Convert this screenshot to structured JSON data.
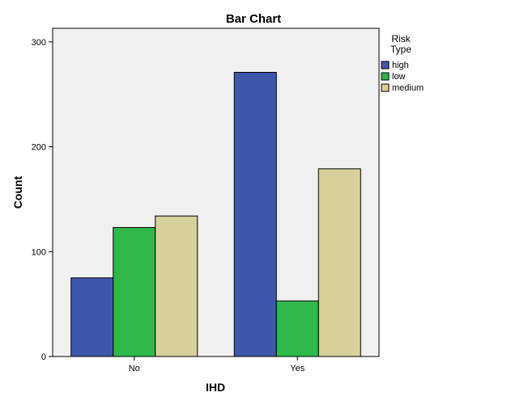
{
  "chart_data": {
    "type": "bar",
    "title": "Bar Chart",
    "xlabel": "IHD",
    "ylabel": "Count",
    "categories": [
      "No",
      "Yes"
    ],
    "series": [
      {
        "name": "high",
        "values": [
          75,
          271
        ],
        "color": "#3f57ab"
      },
      {
        "name": "low",
        "values": [
          123,
          53
        ],
        "color": "#2fb84a"
      },
      {
        "name": "medium",
        "values": [
          134,
          179
        ],
        "color": "#d6d09a"
      }
    ],
    "ylim": [
      0,
      300
    ],
    "yticks": [
      0,
      100,
      200,
      300
    ],
    "legend": {
      "title_lines": [
        "Risk",
        "Type"
      ],
      "position": "right"
    },
    "grid": false,
    "plot_background": "#f0f0f0"
  }
}
